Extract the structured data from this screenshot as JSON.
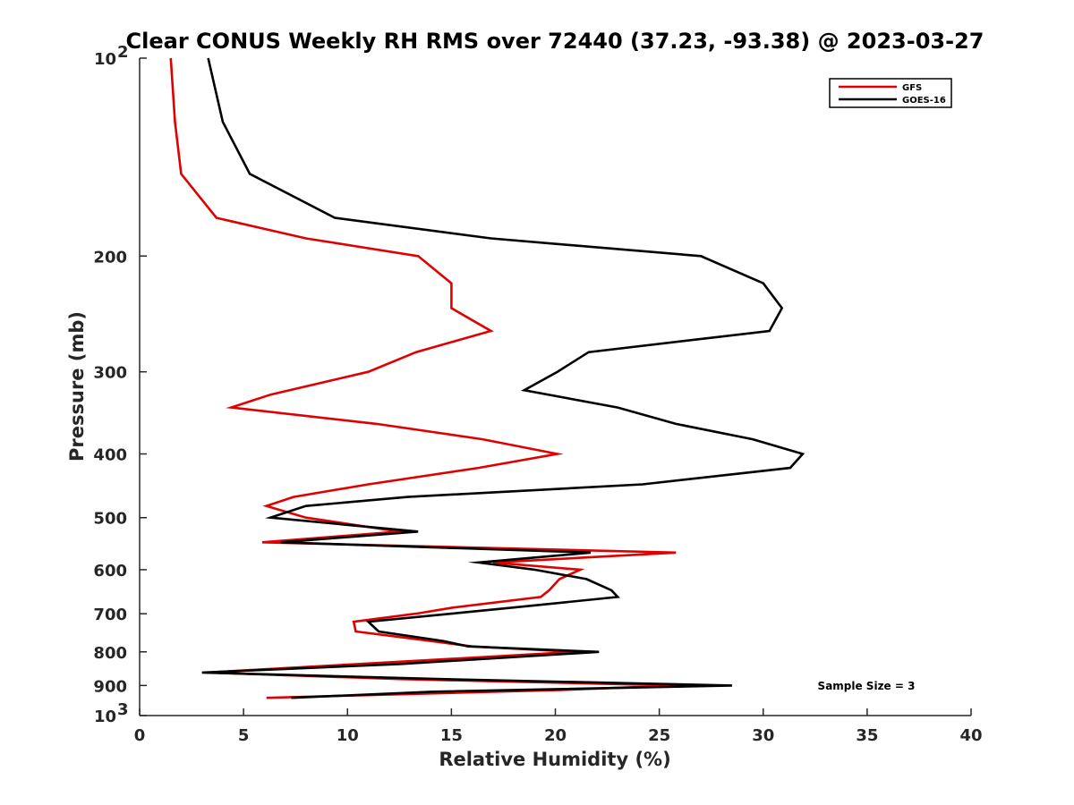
{
  "chart_data": {
    "type": "line",
    "title": "Clear CONUS Weekly RH RMS over 72440 (37.23, -93.38) @ 2023-03-27",
    "xlabel": "Relative Humidity (%)",
    "ylabel": "Pressure (mb)",
    "xlim": [
      0,
      40
    ],
    "ylim": [
      100,
      1000
    ],
    "y_scale": "log",
    "y_reversed": true,
    "grid": false,
    "legend_position": "top-right",
    "x_ticks": [
      "0",
      "5",
      "10",
      "15",
      "20",
      "25",
      "30",
      "35",
      "40"
    ],
    "y_ticks": [
      {
        "value": 100,
        "base": "10",
        "exp": "2"
      },
      {
        "value": 200,
        "label": "200"
      },
      {
        "value": 300,
        "label": "300"
      },
      {
        "value": 400,
        "label": "400"
      },
      {
        "value": 500,
        "label": "500"
      },
      {
        "value": 600,
        "label": "600"
      },
      {
        "value": 700,
        "label": "700"
      },
      {
        "value": 800,
        "label": "800"
      },
      {
        "value": 900,
        "label": "900"
      },
      {
        "value": 1000,
        "base": "10",
        "exp": "3"
      }
    ],
    "annotation": "Sample Size = 3",
    "series": [
      {
        "name": "GFS",
        "color": "#e00000",
        "points": [
          [
            1.5,
            100
          ],
          [
            1.7,
            125
          ],
          [
            2.0,
            150
          ],
          [
            3.7,
            175
          ],
          [
            8.0,
            188
          ],
          [
            13.4,
            200
          ],
          [
            15.0,
            220
          ],
          [
            15.0,
            240
          ],
          [
            16.9,
            260
          ],
          [
            13.3,
            280
          ],
          [
            11.0,
            300
          ],
          [
            6.3,
            325
          ],
          [
            4.4,
            340
          ],
          [
            11.4,
            360
          ],
          [
            16.5,
            380
          ],
          [
            20.1,
            400
          ],
          [
            16.3,
            420
          ],
          [
            11.0,
            445
          ],
          [
            7.4,
            465
          ],
          [
            6.1,
            480
          ],
          [
            8.0,
            500
          ],
          [
            12.5,
            525
          ],
          [
            5.9,
            545
          ],
          [
            25.8,
            565
          ],
          [
            17.0,
            585
          ],
          [
            21.2,
            600
          ],
          [
            20.2,
            620
          ],
          [
            19.7,
            645
          ],
          [
            19.3,
            660
          ],
          [
            15.1,
            685
          ],
          [
            13.3,
            700
          ],
          [
            10.3,
            720
          ],
          [
            10.4,
            745
          ],
          [
            14.0,
            770
          ],
          [
            16.0,
            785
          ],
          [
            21.0,
            800
          ],
          [
            10.5,
            835
          ],
          [
            3.2,
            860
          ],
          [
            12.5,
            880
          ],
          [
            25.9,
            900
          ],
          [
            20.0,
            915
          ],
          [
            6.1,
            940
          ]
        ]
      },
      {
        "name": "GOES-16",
        "color": "#000000",
        "points": [
          [
            3.3,
            100
          ],
          [
            4.0,
            125
          ],
          [
            5.3,
            150
          ],
          [
            9.4,
            175
          ],
          [
            16.9,
            188
          ],
          [
            27.0,
            200
          ],
          [
            30.0,
            220
          ],
          [
            30.9,
            240
          ],
          [
            30.3,
            260
          ],
          [
            21.6,
            280
          ],
          [
            20.1,
            300
          ],
          [
            18.5,
            320
          ],
          [
            23.0,
            340
          ],
          [
            25.8,
            360
          ],
          [
            29.5,
            380
          ],
          [
            31.9,
            400
          ],
          [
            31.3,
            420
          ],
          [
            24.2,
            445
          ],
          [
            12.9,
            465
          ],
          [
            8.0,
            480
          ],
          [
            6.3,
            500
          ],
          [
            13.4,
            525
          ],
          [
            6.8,
            545
          ],
          [
            21.7,
            565
          ],
          [
            16.3,
            585
          ],
          [
            19.0,
            600
          ],
          [
            21.5,
            620
          ],
          [
            22.7,
            645
          ],
          [
            23.0,
            660
          ],
          [
            18.0,
            685
          ],
          [
            15.0,
            700
          ],
          [
            11.0,
            720
          ],
          [
            11.5,
            745
          ],
          [
            14.6,
            770
          ],
          [
            15.8,
            785
          ],
          [
            22.1,
            800
          ],
          [
            12.5,
            835
          ],
          [
            3.0,
            860
          ],
          [
            14.5,
            880
          ],
          [
            28.5,
            900
          ],
          [
            14.0,
            920
          ],
          [
            7.3,
            940
          ]
        ]
      }
    ]
  }
}
